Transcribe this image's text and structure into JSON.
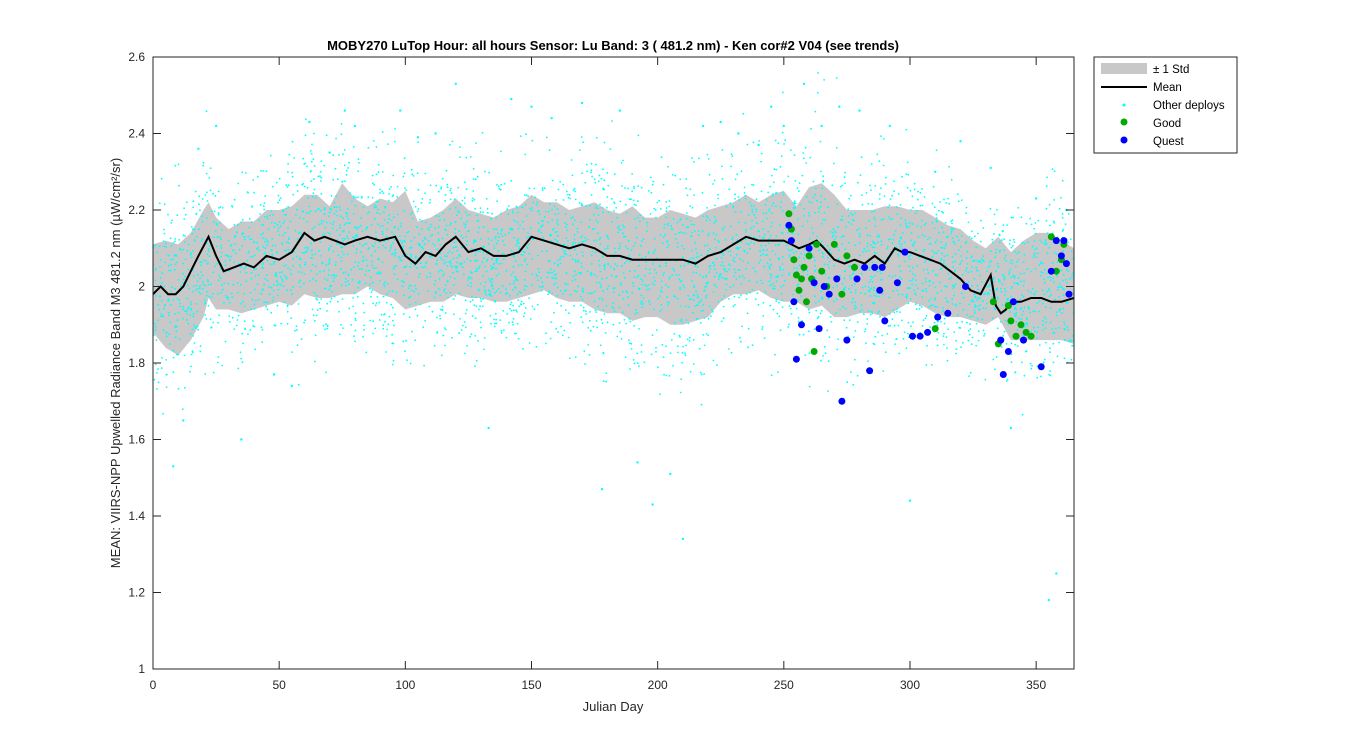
{
  "chart_data": {
    "type": "scatter",
    "title": "MOBY270   LuTop  Hour: all hours  Sensor: Lu Band: 3 ( 481.2 nm)  - Ken cor#2 V04 (see trends)",
    "xlabel": "Julian Day",
    "ylabel": "MEAN: VIIRS-NPP Upwelled Radiance Band M3 481.2 nm (µW/cm²/sr)",
    "xlim": [
      0,
      365
    ],
    "ylim": [
      1,
      2.6
    ],
    "xticks": [
      0,
      50,
      100,
      150,
      200,
      250,
      300,
      350
    ],
    "yticks": [
      1,
      1.2,
      1.4,
      1.6,
      1.8,
      2,
      2.2,
      2.4,
      2.6
    ],
    "yticklabels": [
      "1",
      "1.2",
      "1.4",
      "1.6",
      "1.8",
      "2",
      "2.2",
      "2.4",
      "2.6"
    ],
    "legend_position": "outside-top-right",
    "colors": {
      "std_band": "#c8c8c8",
      "mean": "#000000",
      "other": "#00ffff",
      "good": "#00aa00",
      "quest": "#0000ff"
    },
    "legend": [
      {
        "key": "std",
        "label": "± 1 Std"
      },
      {
        "key": "mean",
        "label": "Mean"
      },
      {
        "key": "other",
        "label": "Other deploys"
      },
      {
        "key": "good",
        "label": "Good"
      },
      {
        "key": "quest",
        "label": "Quest"
      }
    ],
    "series": [
      {
        "name": "Mean",
        "kind": "line",
        "x": [
          0,
          3,
          6,
          9,
          12,
          15,
          18,
          22,
          25,
          28,
          32,
          36,
          40,
          45,
          50,
          55,
          60,
          64,
          68,
          72,
          76,
          80,
          85,
          90,
          96,
          100,
          104,
          108,
          112,
          116,
          120,
          125,
          130,
          135,
          140,
          145,
          150,
          155,
          160,
          165,
          170,
          175,
          180,
          185,
          190,
          195,
          200,
          205,
          210,
          215,
          220,
          225,
          230,
          235,
          240,
          245,
          250,
          253,
          256,
          260,
          263,
          266,
          270,
          274,
          278,
          282,
          286,
          290,
          294,
          297,
          300,
          304,
          308,
          312,
          316,
          320,
          324,
          328,
          332,
          334,
          336,
          338,
          340,
          344,
          348,
          352,
          356,
          360,
          365
        ],
        "y": [
          1.98,
          2.0,
          1.98,
          1.98,
          2.0,
          2.04,
          2.08,
          2.13,
          2.08,
          2.04,
          2.05,
          2.06,
          2.05,
          2.08,
          2.07,
          2.09,
          2.14,
          2.12,
          2.13,
          2.12,
          2.11,
          2.12,
          2.13,
          2.12,
          2.13,
          2.08,
          2.06,
          2.09,
          2.08,
          2.11,
          2.13,
          2.09,
          2.1,
          2.08,
          2.08,
          2.09,
          2.13,
          2.12,
          2.11,
          2.1,
          2.11,
          2.1,
          2.08,
          2.08,
          2.07,
          2.07,
          2.07,
          2.07,
          2.07,
          2.06,
          2.08,
          2.09,
          2.11,
          2.13,
          2.12,
          2.12,
          2.12,
          2.11,
          2.1,
          2.11,
          2.12,
          2.1,
          2.07,
          2.06,
          2.07,
          2.06,
          2.08,
          2.06,
          2.1,
          2.09,
          2.09,
          2.08,
          2.07,
          2.06,
          2.04,
          2.02,
          1.99,
          1.98,
          2.03,
          1.95,
          1.93,
          1.94,
          1.96,
          1.96,
          1.97,
          1.97,
          1.96,
          1.96,
          1.97
        ]
      },
      {
        "name": "± 1 Std",
        "kind": "band",
        "x": [
          0,
          5,
          10,
          15,
          20,
          22,
          25,
          30,
          35,
          40,
          45,
          50,
          55,
          60,
          65,
          70,
          75,
          80,
          85,
          90,
          95,
          100,
          105,
          110,
          115,
          120,
          125,
          130,
          135,
          140,
          145,
          150,
          155,
          160,
          165,
          170,
          175,
          180,
          185,
          190,
          195,
          200,
          205,
          210,
          215,
          220,
          225,
          230,
          235,
          240,
          245,
          250,
          255,
          260,
          265,
          270,
          275,
          280,
          285,
          290,
          295,
          300,
          305,
          310,
          315,
          320,
          325,
          330,
          335,
          340,
          345,
          350,
          355,
          360,
          365
        ],
        "upper": [
          2.11,
          2.12,
          2.11,
          2.14,
          2.2,
          2.22,
          2.18,
          2.15,
          2.17,
          2.17,
          2.2,
          2.2,
          2.21,
          2.24,
          2.24,
          2.21,
          2.27,
          2.23,
          2.21,
          2.23,
          2.22,
          2.25,
          2.17,
          2.18,
          2.2,
          2.23,
          2.2,
          2.19,
          2.18,
          2.2,
          2.21,
          2.24,
          2.22,
          2.22,
          2.2,
          2.21,
          2.22,
          2.2,
          2.19,
          2.21,
          2.18,
          2.18,
          2.2,
          2.19,
          2.18,
          2.2,
          2.21,
          2.22,
          2.24,
          2.22,
          2.24,
          2.25,
          2.21,
          2.26,
          2.27,
          2.24,
          2.2,
          2.2,
          2.2,
          2.21,
          2.21,
          2.2,
          2.2,
          2.18,
          2.16,
          2.15,
          2.12,
          2.1,
          2.13,
          2.09,
          2.12,
          2.14,
          2.14,
          2.12,
          2.1
        ],
        "lower": [
          1.88,
          1.84,
          1.82,
          1.86,
          1.92,
          1.97,
          1.94,
          1.94,
          1.93,
          1.94,
          1.95,
          1.96,
          1.95,
          1.98,
          1.97,
          1.97,
          1.98,
          1.98,
          2.0,
          1.98,
          1.97,
          1.94,
          1.95,
          1.96,
          1.96,
          1.98,
          1.97,
          1.97,
          1.96,
          1.96,
          1.97,
          1.98,
          1.99,
          1.97,
          1.96,
          1.96,
          1.94,
          1.93,
          1.93,
          1.91,
          1.92,
          1.92,
          1.9,
          1.9,
          1.91,
          1.92,
          1.96,
          1.98,
          1.98,
          1.99,
          1.97,
          1.96,
          1.96,
          1.94,
          1.95,
          1.92,
          1.92,
          1.93,
          1.93,
          1.92,
          1.94,
          1.96,
          1.95,
          1.93,
          1.92,
          1.92,
          1.91,
          1.9,
          1.92,
          1.86,
          1.86,
          1.86,
          1.86,
          1.86,
          1.85
        ]
      },
      {
        "name": "Good",
        "kind": "scatter",
        "x": [
          252,
          253,
          254,
          255,
          256,
          257,
          258,
          259,
          260,
          261,
          262,
          263,
          265,
          267,
          270,
          273,
          275,
          278,
          310,
          333,
          335,
          339,
          340,
          342,
          344,
          346,
          348,
          356,
          358,
          360,
          361
        ],
        "y": [
          2.19,
          2.15,
          2.07,
          2.03,
          1.99,
          2.02,
          2.05,
          1.96,
          2.08,
          2.02,
          1.83,
          2.11,
          2.04,
          2.0,
          2.11,
          1.98,
          2.08,
          2.05,
          1.89,
          1.96,
          1.85,
          1.95,
          1.91,
          1.87,
          1.9,
          1.88,
          1.87,
          2.13,
          2.04,
          2.07,
          2.11
        ]
      },
      {
        "name": "Quest",
        "kind": "scatter",
        "x": [
          252,
          253,
          254,
          255,
          257,
          260,
          262,
          264,
          266,
          268,
          271,
          273,
          275,
          279,
          282,
          284,
          286,
          288,
          289,
          290,
          295,
          298,
          301,
          304,
          307,
          311,
          315,
          322,
          336,
          337,
          339,
          341,
          345,
          352,
          356,
          358,
          360,
          361,
          362,
          363
        ],
        "y": [
          2.16,
          2.12,
          1.96,
          1.81,
          1.9,
          2.1,
          2.01,
          1.89,
          2.0,
          1.98,
          2.02,
          1.7,
          1.86,
          2.02,
          2.05,
          1.78,
          2.05,
          1.99,
          2.05,
          1.91,
          2.01,
          2.09,
          1.87,
          1.87,
          1.88,
          1.92,
          1.93,
          2.0,
          1.86,
          1.77,
          1.83,
          1.96,
          1.86,
          1.79,
          2.04,
          2.12,
          2.08,
          2.12,
          2.06,
          1.98
        ]
      },
      {
        "name": "Other deploys",
        "kind": "scatter",
        "note_points": "dense point cloud spread around the band, ~1.6–2.45 on most days",
        "x": [
          8,
          12,
          18,
          25,
          35,
          48,
          55,
          62,
          70,
          76,
          80,
          98,
          105,
          112,
          120,
          133,
          142,
          150,
          158,
          170,
          178,
          185,
          192,
          198,
          205,
          210,
          218,
          225,
          232,
          240,
          245,
          250,
          258,
          265,
          272,
          280,
          292,
          300,
          310,
          320,
          332,
          340,
          350,
          355,
          358,
          362
        ],
        "y": [
          1.53,
          1.65,
          2.36,
          2.42,
          1.6,
          1.77,
          1.74,
          2.43,
          2.35,
          2.46,
          2.42,
          2.46,
          2.39,
          2.4,
          2.53,
          1.63,
          2.49,
          2.47,
          2.44,
          2.48,
          1.47,
          2.46,
          1.54,
          1.43,
          1.51,
          1.34,
          2.42,
          2.43,
          2.4,
          2.37,
          2.47,
          2.42,
          2.53,
          2.42,
          2.47,
          2.46,
          2.42,
          1.44,
          2.3,
          2.38,
          2.31,
          1.63,
          2.23,
          1.18,
          1.25,
          2.2
        ]
      }
    ]
  }
}
